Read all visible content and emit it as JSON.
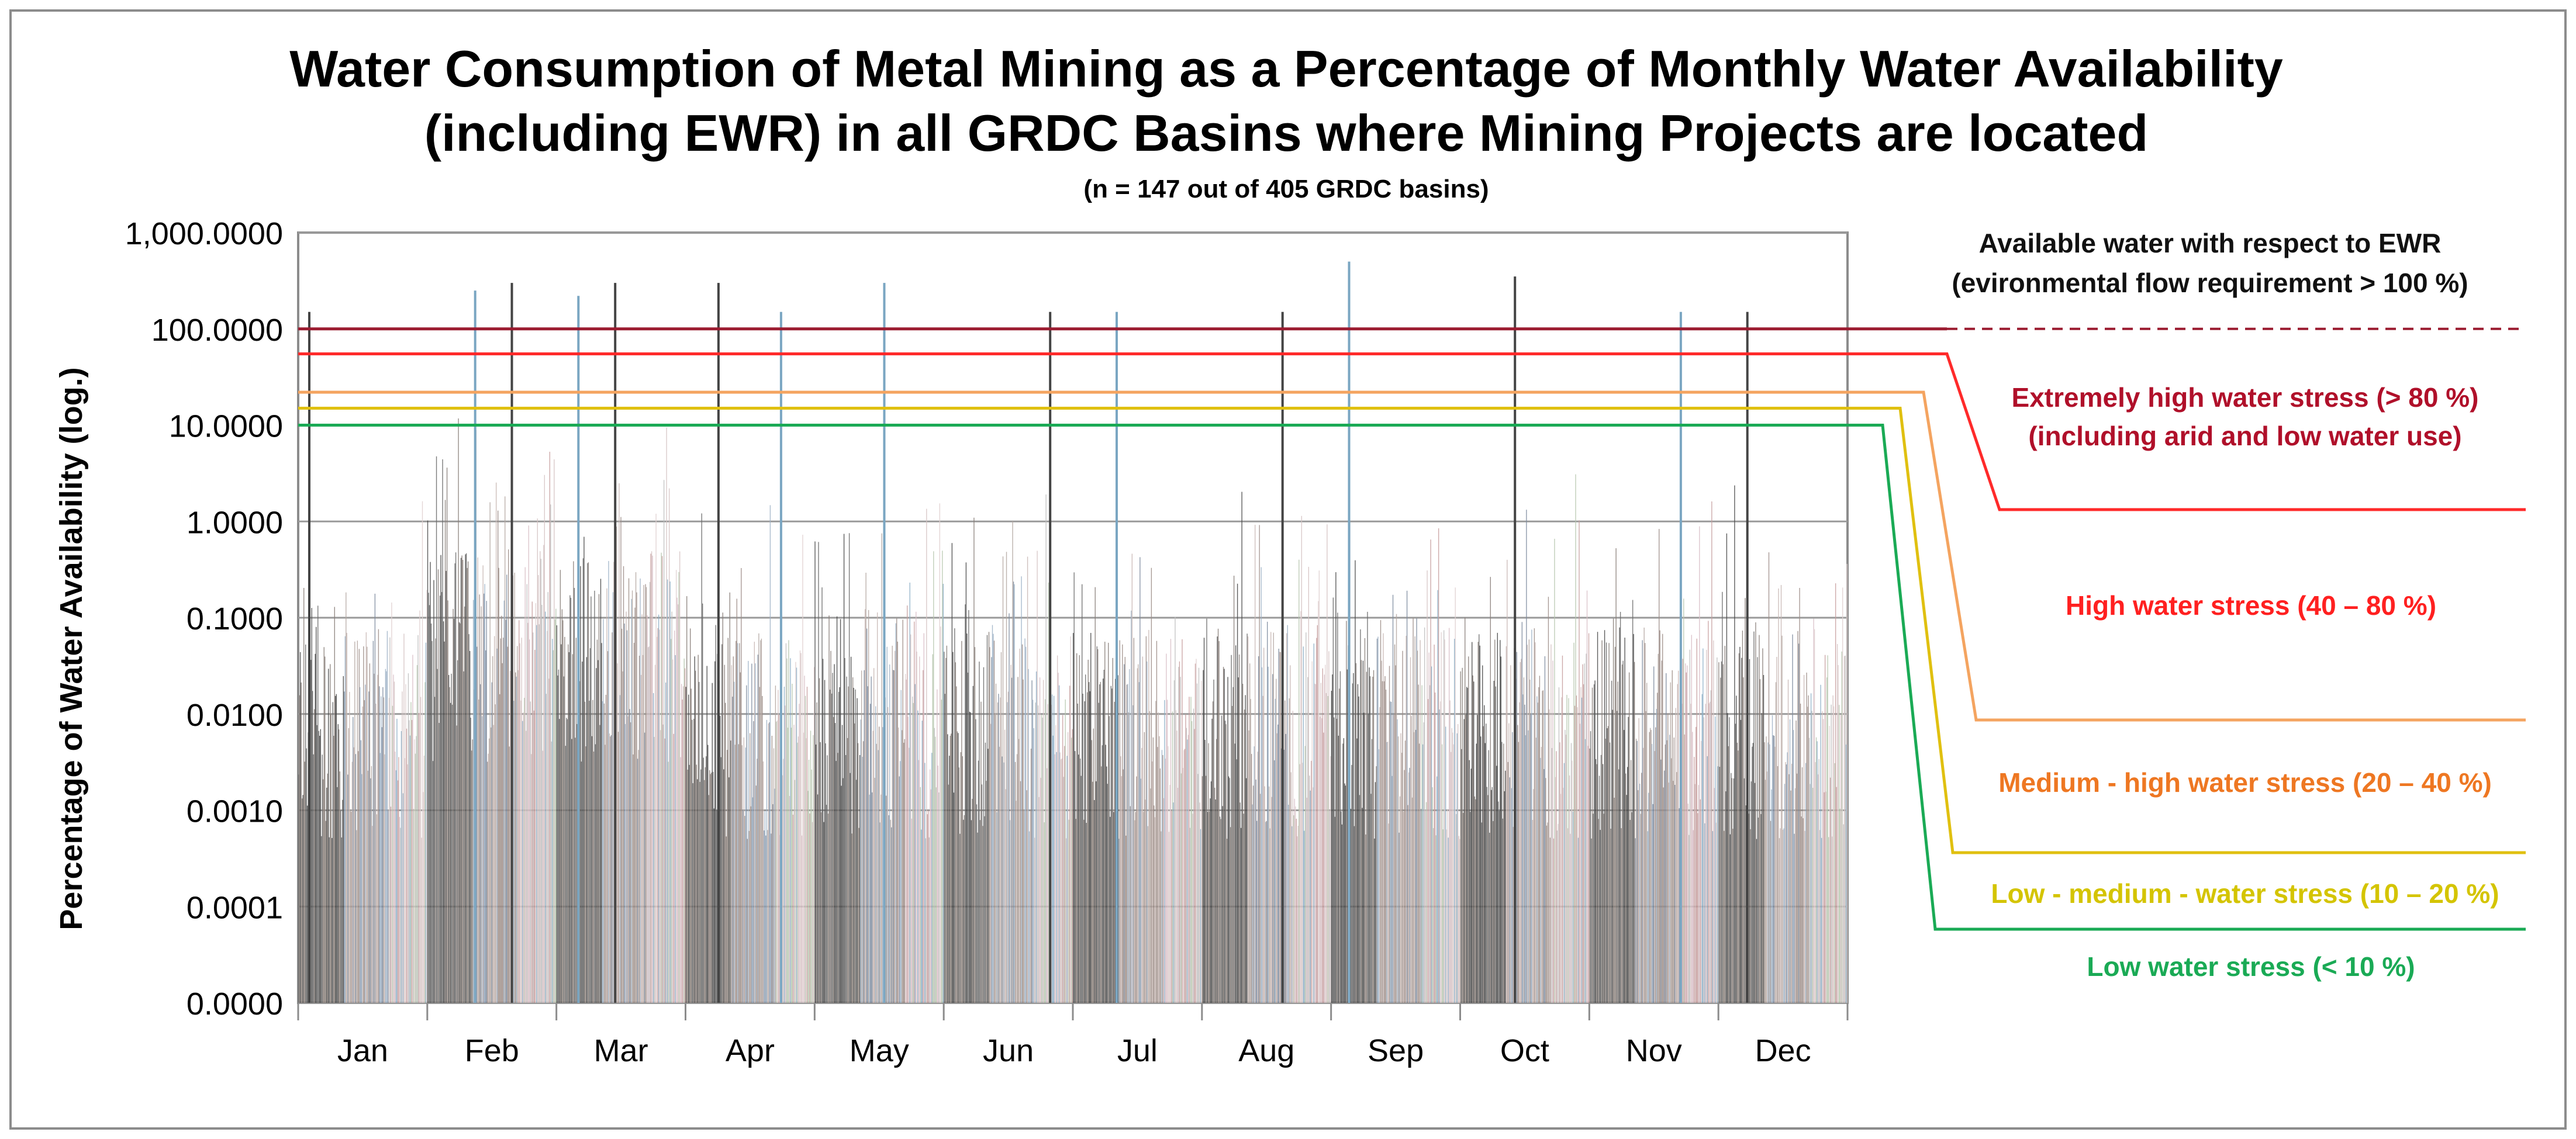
{
  "chart_data": {
    "type": "bar",
    "title_line1": "Water Consumption of Metal Mining as a Percentage of Monthly Water Availability",
    "title_line2": "(including EWR) in all GRDC Basins where Mining Projects are located",
    "subtitle": "(n = 147 out of 405 GRDC basins)",
    "xlabel": "",
    "ylabel": "Percentage of Water Availability (log.)",
    "y_scale": "log",
    "ylim": [
      0.0,
      1000.0
    ],
    "y_ticks": [
      "1,000.0000",
      "100.0000",
      "10.0000",
      "1.0000",
      "0.1000",
      "0.0100",
      "0.0010",
      "0.0001",
      "0.0000"
    ],
    "grid": true,
    "categories": [
      "Jan",
      "Feb",
      "Mar",
      "Apr",
      "May",
      "Jun",
      "Jul",
      "Aug",
      "Sep",
      "Oct",
      "Nov",
      "Dec"
    ],
    "basins_per_month": 147,
    "notable_peaks": [
      {
        "month": "Jan",
        "value": 150
      },
      {
        "month": "Feb",
        "value": 250
      },
      {
        "month": "Feb",
        "value": 300
      },
      {
        "month": "Mar",
        "value": 220
      },
      {
        "month": "Mar",
        "value": 300
      },
      {
        "month": "Apr",
        "value": 150
      },
      {
        "month": "Apr",
        "value": 300
      },
      {
        "month": "May",
        "value": 300
      },
      {
        "month": "Jun",
        "value": 150
      },
      {
        "month": "Jul",
        "value": 150
      },
      {
        "month": "Aug",
        "value": 150
      },
      {
        "month": "Sep",
        "value": 500
      },
      {
        "month": "Oct",
        "value": 350
      },
      {
        "month": "Nov",
        "value": 150
      },
      {
        "month": "Dec",
        "value": 150
      }
    ],
    "thresholds": [
      {
        "value": 100,
        "label": "Available water with respect to EWR",
        "label2": "(evironmental flow requirement > 100 %)",
        "color": "#9b1b30"
      },
      {
        "value": 55,
        "label": "Extremely high water stress (> 80 %)",
        "label2": "(including arid and low water use)",
        "color": "#ff2a2a"
      },
      {
        "value": 22,
        "label": "High water stress (40 – 80 %)",
        "color": "#f4a460"
      },
      {
        "value": 15,
        "label": "Medium - high water stress (20 – 40 %)",
        "color": "#e0c010"
      },
      {
        "value": 10,
        "label": "Low - medium - water stress (10 – 20 %)",
        "color": "#1aaa55"
      },
      {
        "label": "Low water stress (< 10 %)",
        "color": "#1aaa55"
      }
    ],
    "label_colors": {
      "ewr": "#111111",
      "extreme": "#b0102a",
      "high": "#ff2020",
      "medium_high": "#ee7722",
      "low_medium": "#d4c400",
      "low": "#1aaa55"
    }
  }
}
